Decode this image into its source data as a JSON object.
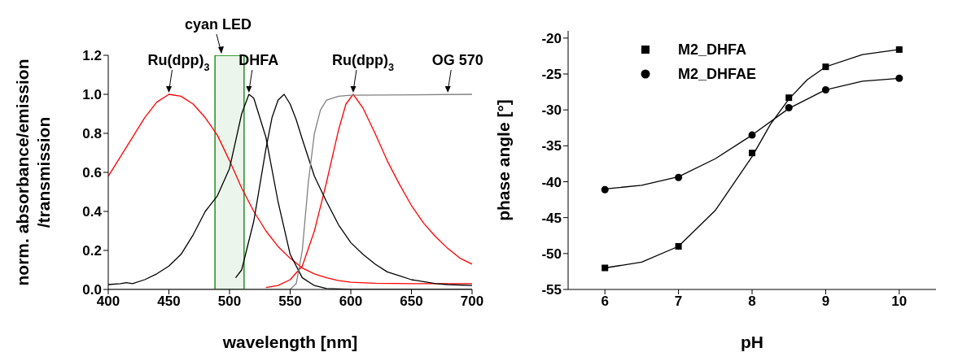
{
  "chart_data": [
    {
      "type": "line",
      "xlabel": "wavelength [nm]",
      "ylabel": "norm. absorbance/emission\n/transmission",
      "xlim": [
        400,
        700
      ],
      "xticks": [
        400,
        450,
        500,
        550,
        600,
        650,
        700
      ],
      "ylim": [
        0,
        1.2
      ],
      "yticks": [
        {
          "value": 0,
          "label": "0.0"
        },
        {
          "value": 0.2,
          "label": "0.2"
        },
        {
          "value": 0.4,
          "label": "0.4"
        },
        {
          "value": 0.6,
          "label": "0.6"
        },
        {
          "value": 0.8,
          "label": "0.8"
        },
        {
          "value": 1,
          "label": "1.0"
        },
        {
          "value": 1.2,
          "label": "1.2"
        }
      ],
      "series": [
        {
          "color": "#ff0000",
          "x": [
            400,
            410,
            420,
            430,
            440,
            450,
            460,
            470,
            480,
            490,
            500,
            510,
            520,
            530,
            540,
            550,
            560,
            570,
            580,
            590,
            600,
            620,
            650,
            700
          ],
          "values": [
            0.58,
            0.68,
            0.78,
            0.88,
            0.96,
            1.0,
            0.99,
            0.95,
            0.88,
            0.79,
            0.66,
            0.52,
            0.4,
            0.3,
            0.22,
            0.16,
            0.11,
            0.08,
            0.06,
            0.045,
            0.037,
            0.032,
            0.03,
            0.03
          ]
        },
        {
          "color": "#ff0000",
          "x": [
            530,
            540,
            550,
            560,
            570,
            580,
            590,
            596,
            602,
            610,
            620,
            630,
            640,
            650,
            660,
            670,
            680,
            690,
            700
          ],
          "values": [
            0.01,
            0.02,
            0.05,
            0.12,
            0.3,
            0.55,
            0.82,
            0.95,
            1.0,
            0.93,
            0.8,
            0.66,
            0.54,
            0.43,
            0.34,
            0.27,
            0.21,
            0.16,
            0.13
          ]
        },
        {
          "color": "#000000",
          "x": [
            400,
            410,
            415,
            420,
            430,
            440,
            450,
            460,
            470,
            480,
            490,
            500,
            505,
            510,
            516,
            520,
            530,
            540,
            550,
            560,
            570,
            580,
            600,
            700
          ],
          "values": [
            0.025,
            0.03,
            0.035,
            0.03,
            0.05,
            0.08,
            0.12,
            0.18,
            0.28,
            0.4,
            0.48,
            0.62,
            0.76,
            0.9,
            1.0,
            0.98,
            0.78,
            0.45,
            0.18,
            0.06,
            0.02,
            0.005,
            0,
            0
          ]
        },
        {
          "color": "#000000",
          "x": [
            505,
            510,
            520,
            530,
            535,
            540,
            545,
            550,
            555,
            560,
            570,
            580,
            590,
            600,
            610,
            620,
            630,
            640,
            650,
            660,
            670,
            680,
            700
          ],
          "values": [
            0.06,
            0.1,
            0.35,
            0.72,
            0.88,
            0.97,
            1.0,
            0.95,
            0.87,
            0.77,
            0.58,
            0.45,
            0.33,
            0.24,
            0.18,
            0.13,
            0.09,
            0.07,
            0.05,
            0.04,
            0.03,
            0.025,
            0.02
          ]
        },
        {
          "color": "#808080",
          "x": [
            400,
            550,
            555,
            560,
            565,
            570,
            575,
            580,
            590,
            600,
            700
          ],
          "values": [
            0,
            0,
            0.03,
            0.2,
            0.55,
            0.8,
            0.92,
            0.97,
            0.99,
            0.995,
            1.0
          ]
        }
      ],
      "bands": [
        {
          "axis": "x",
          "from": 488,
          "to": 512,
          "label": "cyan LED",
          "color": "#008000"
        }
      ],
      "annotations": [
        {
          "text": "Ru(dpp)$_{3}$",
          "x": 450,
          "y": 1.0
        },
        {
          "text": "DHFA",
          "x": 516,
          "y": 1.0
        },
        {
          "text": "Ru(dpp)$_{3}$",
          "x": 602,
          "y": 1.0
        },
        {
          "text": "OG 570",
          "x": 680,
          "y": 1.0
        }
      ]
    },
    {
      "type": "scatter",
      "xlabel": "pH",
      "ylabel": "phase angle [°]",
      "xlim": [
        5.5,
        10.5
      ],
      "xticks": [
        6,
        7,
        8,
        9,
        10
      ],
      "ylim": [
        -55,
        -19
      ],
      "yticks": [
        -55,
        -50,
        -45,
        -40,
        -35,
        -30,
        -25,
        -20
      ],
      "legend": "top left",
      "series": [
        {
          "name": "M2_DHFA",
          "color": "#000000",
          "marker": "square",
          "x": [
            6,
            7,
            8,
            8.5,
            9,
            10
          ],
          "values": [
            -52,
            -49,
            -36,
            -28.3,
            -24,
            -21.6
          ]
        },
        {
          "name": "M2_DHFAE",
          "color": "#000000",
          "marker": "circle",
          "x": [
            6,
            7,
            8,
            8.5,
            9,
            10
          ],
          "values": [
            -41.1,
            -39.4,
            -33.5,
            -29.7,
            -27.2,
            -25.6
          ]
        },
        {
          "type": "line",
          "color": "#000000",
          "marker": "none",
          "x": [
            6,
            6.5,
            7,
            7.5,
            8,
            8.25,
            8.5,
            8.75,
            9,
            9.5,
            10
          ],
          "values": [
            -52,
            -51.2,
            -49,
            -44,
            -36.5,
            -32,
            -28.5,
            -25.8,
            -24,
            -22.3,
            -21.6
          ]
        },
        {
          "type": "line",
          "color": "#000000",
          "marker": "none",
          "x": [
            6,
            6.5,
            7,
            7.5,
            8,
            8.5,
            9,
            9.5,
            10
          ],
          "values": [
            -41,
            -40.5,
            -39.3,
            -36.8,
            -33.5,
            -29.8,
            -27.2,
            -26,
            -25.6
          ]
        }
      ]
    }
  ]
}
